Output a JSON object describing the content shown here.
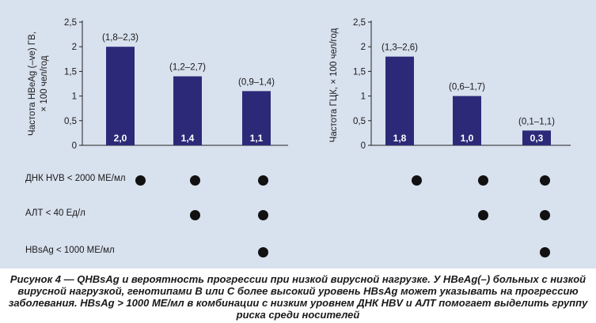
{
  "chart_data": [
    {
      "type": "bar",
      "ylabel": "Частота HBeAg (–ve) ГВ, × 100 чел/год",
      "xlabel": "",
      "ylim": [
        0,
        2.5
      ],
      "yticks": [
        "0",
        "0,5",
        "1",
        "1,5",
        "2",
        "2,5"
      ],
      "ytick_values": [
        0,
        0.5,
        1,
        1.5,
        2,
        2.5
      ],
      "categories": [
        "",
        "",
        ""
      ],
      "values": [
        2.0,
        1.4,
        1.1
      ],
      "value_labels": [
        "2,0",
        "1,4",
        "1,1"
      ],
      "ci_labels": [
        "(1,8–2,3)",
        "(1,2–2,7)",
        "(0,9–1,4)"
      ],
      "bar_color": "#2c2a78",
      "grid": false
    },
    {
      "type": "bar",
      "ylabel": "Частота ГЦК, × 100 чел/год",
      "xlabel": "",
      "ylim": [
        0,
        2.5
      ],
      "yticks": [
        "0",
        "0,5",
        "1",
        "1,5",
        "2",
        "2,5"
      ],
      "ytick_values": [
        0,
        0.5,
        1,
        1.5,
        2,
        2.5
      ],
      "categories": [
        "",
        "",
        ""
      ],
      "values": [
        1.8,
        1.0,
        0.3
      ],
      "value_labels": [
        "1,8",
        "1,0",
        "0,3"
      ],
      "ci_labels": [
        "(1,3–2,6)",
        "(0,6–1,7)",
        "(0,1–1,1)"
      ],
      "bar_color": "#2c2a78",
      "grid": false
    }
  ],
  "criteria": [
    {
      "label": "ДНК HVB < 2000 МЕ/мл",
      "left": [
        true,
        true,
        true
      ],
      "right": [
        true,
        true,
        true
      ]
    },
    {
      "label": "АЛТ < 40 Ед/л",
      "left": [
        false,
        true,
        true
      ],
      "right": [
        false,
        true,
        true
      ]
    },
    {
      "label": "HBsAg < 1000 МЕ/мл",
      "left": [
        false,
        false,
        true
      ],
      "right": [
        false,
        false,
        true
      ]
    }
  ],
  "caption": "Рисунок 4 — QHBsAg и вероятность прогрессии при низкой вирусной нагрузке. У HBeAg(–) больных с низкой вирусной нагрузкой, генотипами В или С более высокий уровень HBsAg может указывать на прогрессию заболевания. HBsAg > 1000 МЕ/мл в комбинации с низким уровнем ДНК HBV и АЛТ помогает выделить группу риска среди носителей",
  "colors": {
    "panel_bg": "#d8e1ee",
    "bar": "#2c2a78",
    "dot": "#111111"
  }
}
